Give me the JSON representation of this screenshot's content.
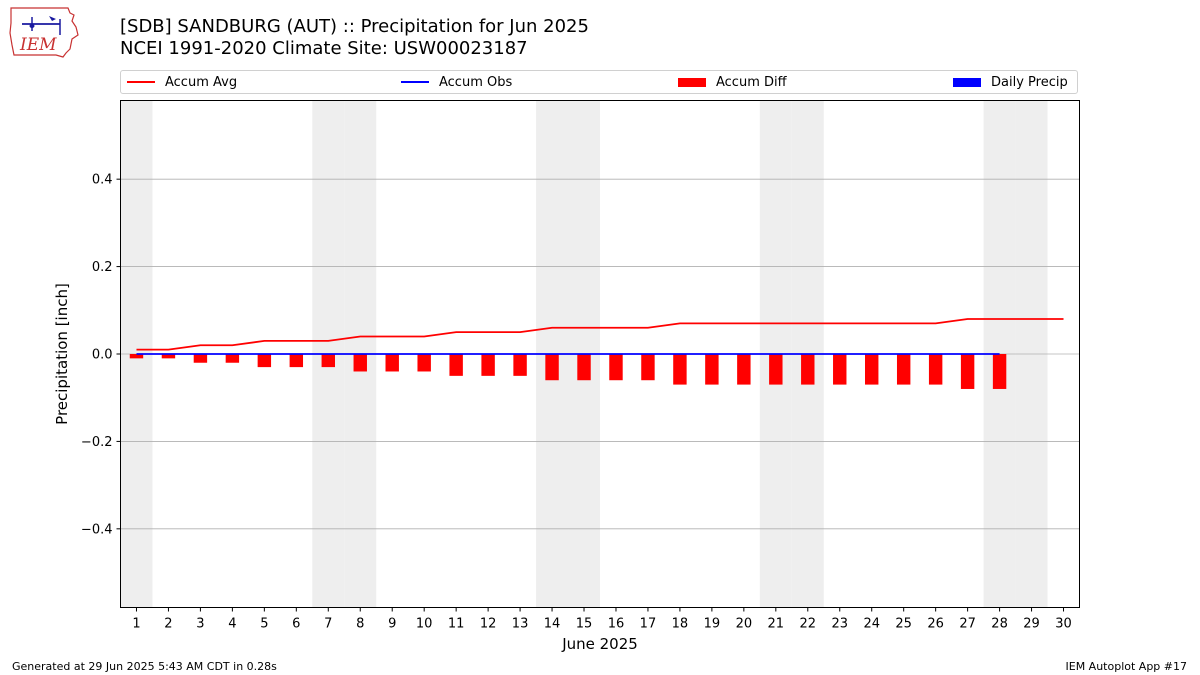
{
  "header": {
    "title_line1": "[SDB] SANDBURG (AUT) :: Precipitation for Jun 2025",
    "title_line2": "NCEI 1991-2020 Climate Site: USW00023187",
    "logo_text": "IEM"
  },
  "footer": {
    "generated": "Generated at 29 Jun 2025 5:43 AM CDT in 0.28s",
    "app": "IEM Autoplot App #17"
  },
  "colors": {
    "accum_avg": "#ff0000",
    "accum_obs": "#0000ff",
    "accum_diff": "#ff0000",
    "daily_precip": "#0000ff",
    "weekend_shade": "#eeeeee",
    "grid": "#b0b0b0"
  },
  "chart_data": {
    "type": "bar",
    "xlabel": "June 2025",
    "ylabel": "Precipitation [inch]",
    "ylim": [
      -0.58,
      0.58
    ],
    "xlim": [
      0.5,
      30.5
    ],
    "grid": "horizontal",
    "legend_position": "top",
    "legend": [
      "Accum Avg",
      "Accum Obs",
      "Accum Diff",
      "Daily Precip"
    ],
    "y_ticks": [
      -0.4,
      -0.2,
      0.0,
      0.2,
      0.4
    ],
    "y_tick_labels": [
      "−0.4",
      "−0.2",
      "0.0",
      "0.2",
      "0.4"
    ],
    "x": [
      1,
      2,
      3,
      4,
      5,
      6,
      7,
      8,
      9,
      10,
      11,
      12,
      13,
      14,
      15,
      16,
      17,
      18,
      19,
      20,
      21,
      22,
      23,
      24,
      25,
      26,
      27,
      28,
      29,
      30
    ],
    "x_tick_labels": [
      "1",
      "2",
      "3",
      "4",
      "5",
      "6",
      "7",
      "8",
      "9",
      "10",
      "11",
      "12",
      "13",
      "14",
      "15",
      "16",
      "17",
      "18",
      "19",
      "20",
      "21",
      "22",
      "23",
      "24",
      "25",
      "26",
      "27",
      "28",
      "29",
      "30"
    ],
    "weekend_days": [
      1,
      7,
      8,
      14,
      15,
      21,
      22,
      28,
      29
    ],
    "series": [
      {
        "name": "Accum Avg",
        "type": "line",
        "x": [
          1,
          2,
          3,
          4,
          5,
          6,
          7,
          8,
          9,
          10,
          11,
          12,
          13,
          14,
          15,
          16,
          17,
          18,
          19,
          20,
          21,
          22,
          23,
          24,
          25,
          26,
          27,
          28,
          29,
          30
        ],
        "values": [
          0.01,
          0.01,
          0.02,
          0.02,
          0.03,
          0.03,
          0.03,
          0.04,
          0.04,
          0.04,
          0.05,
          0.05,
          0.05,
          0.06,
          0.06,
          0.06,
          0.06,
          0.07,
          0.07,
          0.07,
          0.07,
          0.07,
          0.07,
          0.07,
          0.07,
          0.07,
          0.08,
          0.08,
          0.08,
          0.08
        ]
      },
      {
        "name": "Accum Obs",
        "type": "line",
        "x": [
          1,
          2,
          3,
          4,
          5,
          6,
          7,
          8,
          9,
          10,
          11,
          12,
          13,
          14,
          15,
          16,
          17,
          18,
          19,
          20,
          21,
          22,
          23,
          24,
          25,
          26,
          27,
          28
        ],
        "values": [
          0,
          0,
          0,
          0,
          0,
          0,
          0,
          0,
          0,
          0,
          0,
          0,
          0,
          0,
          0,
          0,
          0,
          0,
          0,
          0,
          0,
          0,
          0,
          0,
          0,
          0,
          0,
          0
        ]
      },
      {
        "name": "Accum Diff",
        "type": "bar",
        "x": [
          1,
          2,
          3,
          4,
          5,
          6,
          7,
          8,
          9,
          10,
          11,
          12,
          13,
          14,
          15,
          16,
          17,
          18,
          19,
          20,
          21,
          22,
          23,
          24,
          25,
          26,
          27,
          28
        ],
        "values": [
          -0.01,
          -0.01,
          -0.02,
          -0.02,
          -0.03,
          -0.03,
          -0.03,
          -0.04,
          -0.04,
          -0.04,
          -0.05,
          -0.05,
          -0.05,
          -0.06,
          -0.06,
          -0.06,
          -0.06,
          -0.07,
          -0.07,
          -0.07,
          -0.07,
          -0.07,
          -0.07,
          -0.07,
          -0.07,
          -0.07,
          -0.08,
          -0.08
        ]
      },
      {
        "name": "Daily Precip",
        "type": "bar",
        "x": [
          1,
          2,
          3,
          4,
          5,
          6,
          7,
          8,
          9,
          10,
          11,
          12,
          13,
          14,
          15,
          16,
          17,
          18,
          19,
          20,
          21,
          22,
          23,
          24,
          25,
          26,
          27,
          28
        ],
        "values": [
          0,
          0,
          0,
          0,
          0,
          0,
          0,
          0,
          0,
          0,
          0,
          0,
          0,
          0,
          0,
          0,
          0,
          0,
          0,
          0,
          0,
          0,
          0,
          0,
          0,
          0,
          0,
          0
        ]
      }
    ]
  }
}
